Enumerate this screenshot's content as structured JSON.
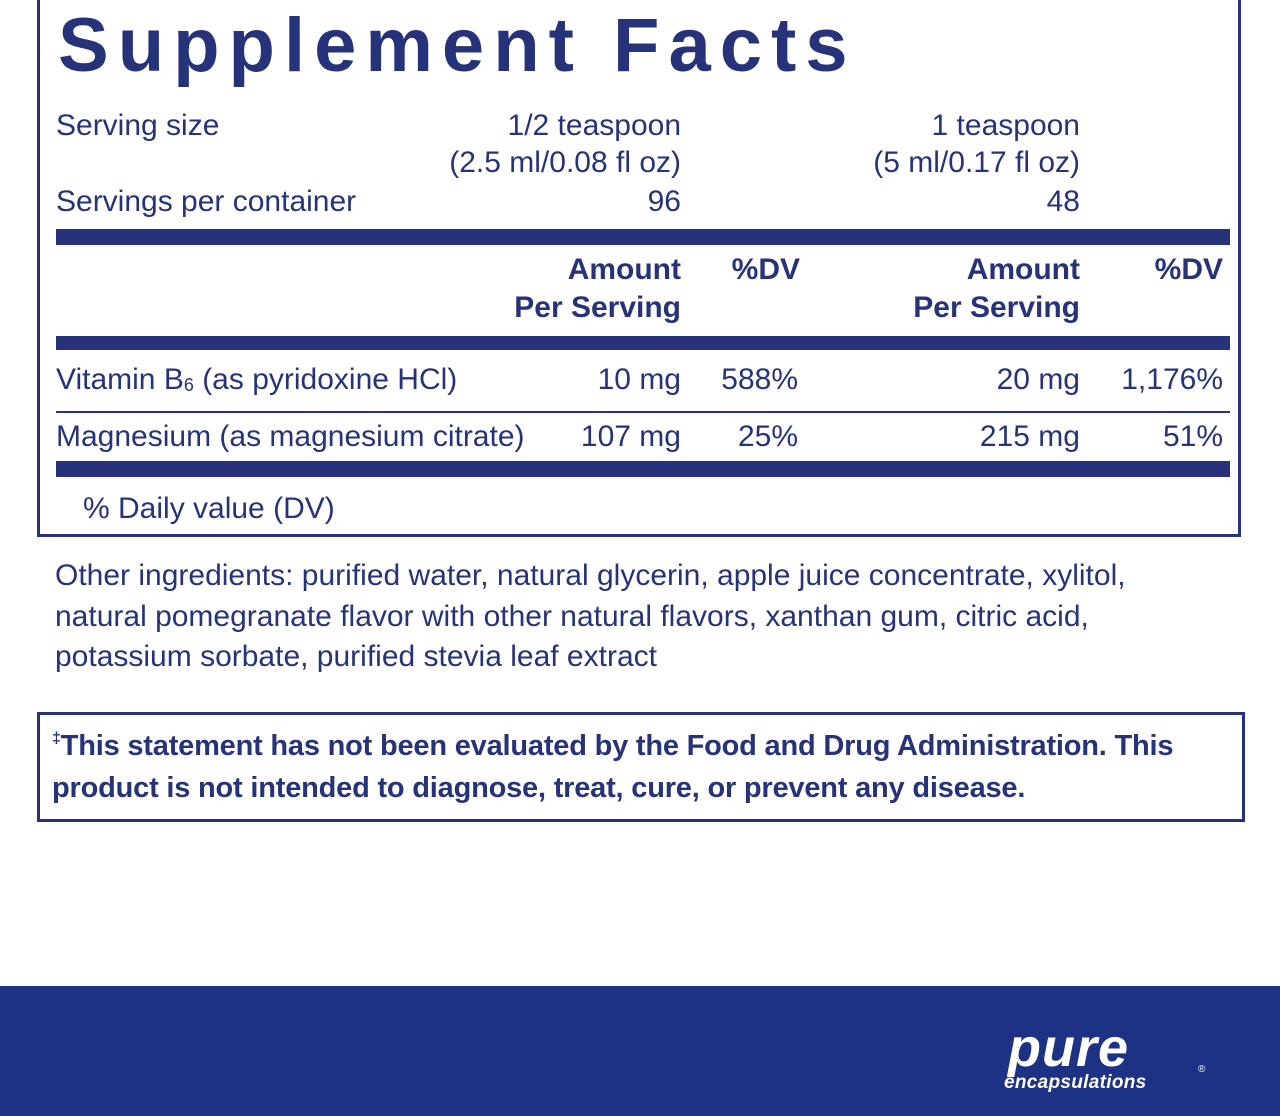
{
  "title": "Supplement Facts",
  "serving": {
    "size_label": "Serving size",
    "size_col1_line1": "1/2 teaspoon",
    "size_col1_line2": "(2.5 ml/0.08 fl oz)",
    "size_col2_line1": "1 teaspoon",
    "size_col2_line2": "(5 ml/0.17 fl oz)",
    "per_container_label": "Servings per container",
    "per_container_col1": "96",
    "per_container_col2": "48"
  },
  "headers": {
    "amount_line1": "Amount",
    "amount_line2": "Per Serving",
    "dv": "%DV"
  },
  "nutrients": [
    {
      "name_prefix": "Vitamin B",
      "name_subscript": "6",
      "name_suffix": " (as pyridoxine HCl)",
      "amount1": "10 mg",
      "dv1": "588%",
      "amount2": "20 mg",
      "dv2": "1,176%"
    },
    {
      "name_prefix": "Magnesium (as magnesium citrate)",
      "name_subscript": "",
      "name_suffix": "",
      "amount1": "107 mg",
      "dv1": "25%",
      "amount2": "215 mg",
      "dv2": "51%"
    }
  ],
  "footnote": "% Daily value (DV)",
  "other_ingredients": [
    "Other ingredients: purified water, natural glycerin, apple juice concentrate, xylitol,",
    "natural pomegranate flavor with other natural flavors, xanthan gum, citric acid,",
    "potassium sorbate, purified stevia leaf extract"
  ],
  "disclaimer": {
    "symbol": "‡",
    "line1": "This statement has not been evaluated by the Food and Drug Administration. This",
    "line2": "product is not intended to diagnose, treat, cure, or prevent any disease."
  },
  "brand": {
    "name": "pure",
    "tagline": "encapsulations",
    "mark": "®"
  },
  "colors": {
    "label_blue": "#26337a",
    "footer_blue": "#1e3285",
    "background": "#ffffff"
  }
}
